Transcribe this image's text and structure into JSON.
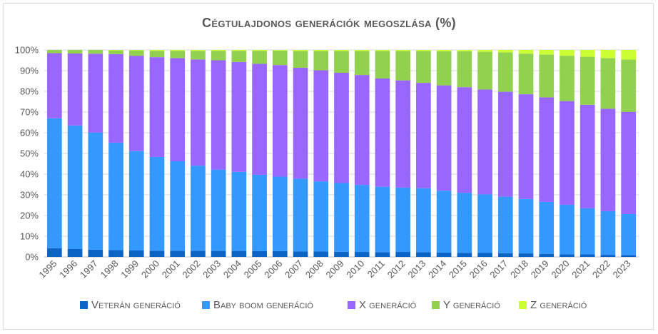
{
  "chart_data": {
    "type": "bar",
    "stacked": true,
    "title": "Cégtulajdonos generációk megoszlása (%)",
    "xlabel": "",
    "ylabel": "",
    "ylim": [
      0,
      100
    ],
    "y_ticks": [
      "0%",
      "10%",
      "20%",
      "30%",
      "40%",
      "50%",
      "60%",
      "70%",
      "80%",
      "90%",
      "100%"
    ],
    "grid": true,
    "legend_position": "bottom",
    "categories": [
      "1995",
      "1996",
      "1997",
      "1998",
      "1999",
      "2000",
      "2001",
      "2002",
      "2003",
      "2004",
      "2005",
      "2006",
      "2007",
      "2008",
      "2009",
      "2010",
      "2011",
      "2012",
      "2013",
      "2014",
      "2015",
      "2016",
      "2017",
      "2018",
      "2019",
      "2020",
      "2021",
      "2022",
      "2023"
    ],
    "series": [
      {
        "name": "Veterán generáció",
        "color": "#0b63c5",
        "values": [
          4.2,
          3.8,
          3.5,
          3.3,
          3.1,
          3.0,
          3.0,
          3.0,
          2.9,
          2.9,
          2.8,
          2.8,
          2.6,
          2.6,
          2.5,
          2.4,
          2.3,
          2.4,
          2.3,
          2.1,
          2.0,
          1.9,
          1.8,
          1.7,
          1.5,
          1.3,
          1.2,
          1.0,
          0.9
        ]
      },
      {
        "name": "Baby boom generáció",
        "color": "#3399ff",
        "values": [
          62.8,
          59.7,
          56.6,
          51.9,
          48.0,
          45.3,
          43.2,
          41.1,
          39.3,
          38.2,
          36.9,
          36.0,
          35.2,
          33.9,
          33.2,
          32.4,
          31.6,
          31.1,
          30.9,
          29.9,
          29.0,
          28.3,
          27.3,
          26.3,
          25.1,
          23.9,
          22.3,
          21.1,
          19.8
        ]
      },
      {
        "name": "X generáció",
        "color": "#9966ff",
        "values": [
          31.5,
          34.8,
          38.1,
          42.8,
          46.1,
          48.2,
          49.9,
          51.3,
          52.8,
          53.1,
          53.6,
          53.9,
          53.6,
          53.7,
          53.3,
          53.1,
          52.3,
          51.8,
          50.9,
          50.9,
          51.0,
          50.7,
          50.7,
          50.6,
          50.5,
          50.1,
          50.0,
          49.5,
          49.4
        ]
      },
      {
        "name": "Y generáció",
        "color": "#92d050",
        "values": [
          1.5,
          1.7,
          1.8,
          1.8,
          2.6,
          3.1,
          3.5,
          4.2,
          4.6,
          5.4,
          6.3,
          7.0,
          8.1,
          9.3,
          10.5,
          11.6,
          13.3,
          14.2,
          15.4,
          16.5,
          17.4,
          18.2,
          19.0,
          19.6,
          20.7,
          21.9,
          23.2,
          24.5,
          25.3
        ]
      },
      {
        "name": "Z generáció",
        "color": "#ccff33",
        "values": [
          0.0,
          0.0,
          0.0,
          0.2,
          0.2,
          0.4,
          0.4,
          0.4,
          0.4,
          0.4,
          0.4,
          0.3,
          0.5,
          0.5,
          0.5,
          0.5,
          0.5,
          0.5,
          0.5,
          0.6,
          0.6,
          0.9,
          1.2,
          1.8,
          2.2,
          2.8,
          3.3,
          3.9,
          4.6
        ]
      }
    ]
  }
}
